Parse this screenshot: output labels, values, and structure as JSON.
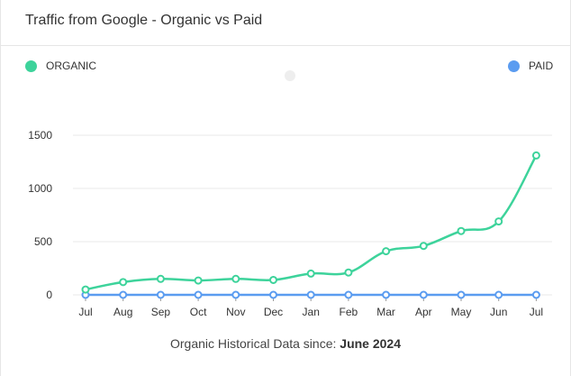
{
  "title": "Traffic from Google - Organic vs Paid",
  "footer": {
    "prefix": "Organic Historical Data since:",
    "date": "June 2024"
  },
  "colors": {
    "organic": "#3dd39b",
    "paid": "#5b9cf0",
    "grid": "#e8e8e8",
    "axis": "#333333"
  },
  "chart_data": {
    "type": "line",
    "categories": [
      "Jul",
      "Aug",
      "Sep",
      "Oct",
      "Nov",
      "Dec",
      "Jan",
      "Feb",
      "Mar",
      "Apr",
      "May",
      "Jun",
      "Jul"
    ],
    "series": [
      {
        "name": "ORGANIC",
        "color": "#3dd39b",
        "values": [
          50,
          120,
          150,
          135,
          150,
          140,
          200,
          210,
          410,
          460,
          600,
          690,
          1310
        ]
      },
      {
        "name": "PAID",
        "color": "#5b9cf0",
        "values": [
          0,
          0,
          0,
          0,
          0,
          0,
          0,
          0,
          0,
          0,
          0,
          0,
          0
        ]
      }
    ],
    "yticks": [
      0,
      500,
      1000,
      1500
    ],
    "ylim": [
      0,
      1500
    ],
    "grid": true,
    "legend": "top"
  }
}
